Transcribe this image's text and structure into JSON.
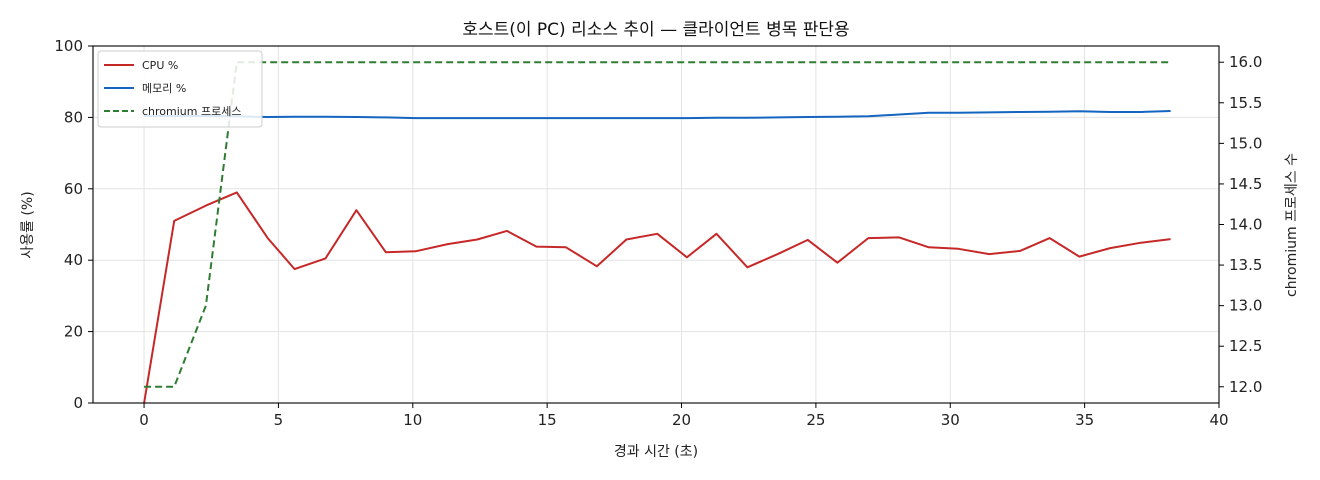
{
  "chart_data": {
    "type": "line",
    "title": "호스트(이 PC) 리소스 추이 — 클라이언트 병목 판단용",
    "xlabel": "경과 시간 (초)",
    "ylabel": "사용률 (%)",
    "y2label": "chromium 프로세스 수",
    "xlim": [
      -1.9,
      40
    ],
    "ylim": [
      0,
      100
    ],
    "y2lim": [
      11.8,
      16.2
    ],
    "xticks": [
      0,
      5,
      10,
      15,
      20,
      25,
      30,
      35,
      40
    ],
    "yticks": [
      0,
      20,
      40,
      60,
      80,
      100
    ],
    "y2ticks": [
      12.0,
      12.5,
      13.0,
      13.5,
      14.0,
      14.5,
      15.0,
      15.5,
      16.0
    ],
    "y2ticks_labels": [
      "12.0",
      "12.5",
      "13.0",
      "13.5",
      "14.0",
      "14.5",
      "15.0",
      "15.5",
      "16.0"
    ],
    "grid": true,
    "legend_position": "top-left",
    "series": [
      {
        "name": "CPU %",
        "axis": "left",
        "color": "#c62828",
        "dash": "solid",
        "x": [
          0,
          1.12,
          2.3,
          3.45,
          4.6,
          5.6,
          6.75,
          7.9,
          9.0,
          10.1,
          11.3,
          12.4,
          13.5,
          14.6,
          15.7,
          16.85,
          17.95,
          19.1,
          20.2,
          21.3,
          22.45,
          23.6,
          24.7,
          25.8,
          26.95,
          28.1,
          29.2,
          30.3,
          31.45,
          32.6,
          33.7,
          34.8,
          35.95,
          37.1,
          38.2
        ],
        "y": [
          0,
          51,
          55.3,
          59,
          46.2,
          37.5,
          40.5,
          54,
          42.2,
          42.5,
          44.5,
          45.8,
          48.2,
          43.8,
          43.6,
          38.3,
          45.8,
          47.4,
          40.8,
          47.4,
          38,
          41.8,
          45.7,
          39.3,
          46.2,
          46.4,
          43.6,
          43.2,
          41.7,
          42.6,
          46.2,
          41,
          43.4,
          44.9,
          45.9
        ]
      },
      {
        "name": "메모리 %",
        "axis": "left",
        "color": "#1565c0",
        "dash": "solid",
        "x": [
          0,
          1.12,
          2.3,
          3.45,
          4.6,
          5.6,
          6.75,
          7.9,
          9.0,
          10.1,
          11.3,
          12.4,
          13.5,
          14.6,
          15.7,
          16.85,
          17.95,
          19.1,
          20.2,
          21.3,
          22.45,
          23.6,
          24.7,
          25.8,
          26.95,
          28.1,
          29.2,
          30.3,
          31.45,
          32.6,
          33.7,
          34.8,
          35.95,
          37.1,
          38.2
        ],
        "y": [
          80.4,
          80.4,
          80.4,
          80.3,
          80.1,
          80.2,
          80.2,
          80.1,
          80.0,
          79.8,
          79.8,
          79.8,
          79.8,
          79.8,
          79.8,
          79.8,
          79.8,
          79.8,
          79.8,
          79.9,
          79.9,
          80.0,
          80.1,
          80.2,
          80.3,
          80.8,
          81.3,
          81.3,
          81.4,
          81.5,
          81.6,
          81.7,
          81.5,
          81.5,
          81.8
        ]
      },
      {
        "name": "chromium 프로세스",
        "axis": "right",
        "color": "#2e7d32",
        "dash": "dashed",
        "x": [
          0,
          1.12,
          2.3,
          3.45,
          4.6,
          38.2
        ],
        "y": [
          12,
          12,
          13,
          16,
          16,
          16
        ]
      }
    ]
  }
}
